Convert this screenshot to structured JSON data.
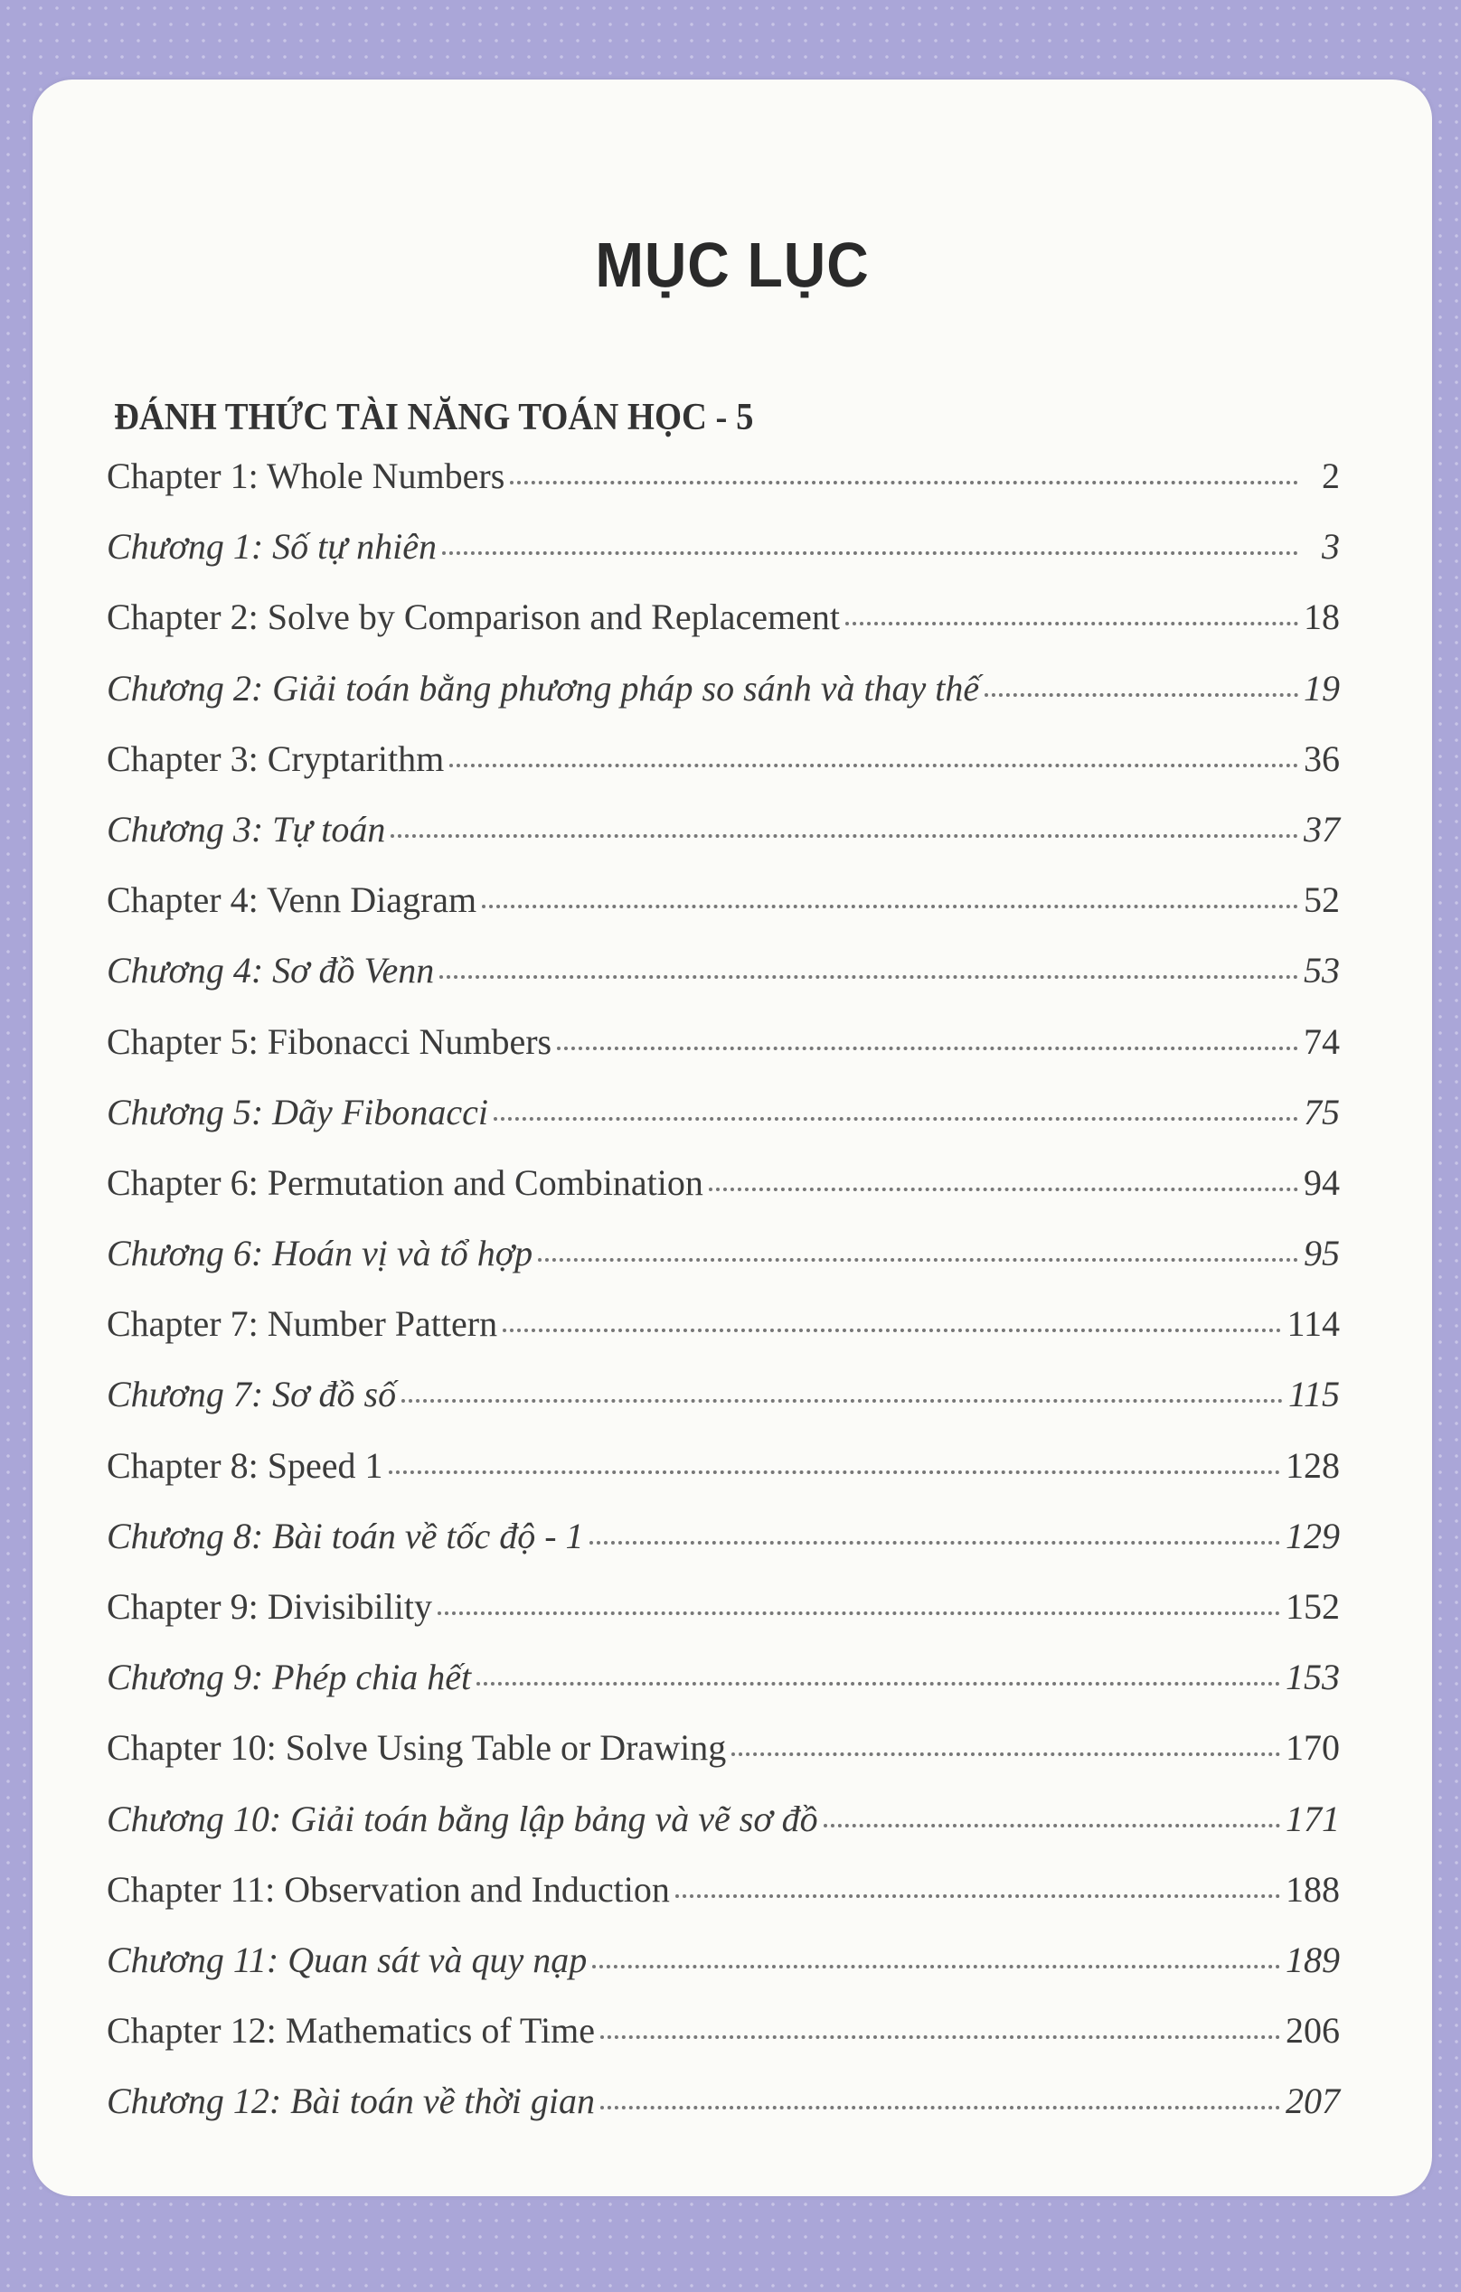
{
  "title": "MỤC LỤC",
  "subtitle": "ĐÁNH THỨC TÀI NĂNG TOÁN HỌC - 5",
  "entries": [
    {
      "label": "Chapter 1: Whole Numbers",
      "page": "2",
      "italic": false
    },
    {
      "label": "Chương 1: Số tự nhiên",
      "page": "3",
      "italic": true
    },
    {
      "label": "Chapter 2: Solve by Comparison and Replacement",
      "page": "18",
      "italic": false
    },
    {
      "label": "Chương 2: Giải toán bằng phương pháp so sánh và thay thế",
      "page": "19",
      "italic": true
    },
    {
      "label": "Chapter 3: Cryptarithm",
      "page": "36",
      "italic": false
    },
    {
      "label": "Chương 3: Tự toán",
      "page": "37",
      "italic": true
    },
    {
      "label": "Chapter 4: Venn Diagram",
      "page": "52",
      "italic": false
    },
    {
      "label": "Chương 4: Sơ đồ Venn",
      "page": "53",
      "italic": true
    },
    {
      "label": "Chapter 5: Fibonacci Numbers",
      "page": "74",
      "italic": false
    },
    {
      "label": "Chương 5: Dãy Fibonacci",
      "page": "75",
      "italic": true
    },
    {
      "label": "Chapter 6: Permutation and Combination",
      "page": "94",
      "italic": false
    },
    {
      "label": "Chương 6: Hoán vị và tổ hợp",
      "page": "95",
      "italic": true
    },
    {
      "label": "Chapter 7: Number Pattern",
      "page": "114",
      "italic": false
    },
    {
      "label": "Chương 7: Sơ đồ số",
      "page": "115",
      "italic": true
    },
    {
      "label": "Chapter 8: Speed 1",
      "page": "128",
      "italic": false
    },
    {
      "label": "Chương 8: Bài toán về tốc độ - 1",
      "page": "129",
      "italic": true
    },
    {
      "label": "Chapter 9: Divisibility",
      "page": "152",
      "italic": false
    },
    {
      "label": "Chương 9: Phép chia hết",
      "page": "153",
      "italic": true
    },
    {
      "label": "Chapter 10: Solve Using Table or Drawing",
      "page": "170",
      "italic": false
    },
    {
      "label": "Chương 10: Giải toán bằng lập bảng và vẽ sơ đồ",
      "page": "171",
      "italic": true
    },
    {
      "label": "Chapter 11: Observation and Induction",
      "page": "188",
      "italic": false
    },
    {
      "label": "Chương 11: Quan sát và quy nạp",
      "page": "189",
      "italic": true
    },
    {
      "label": "Chapter 12: Mathematics of Time",
      "page": "206",
      "italic": false
    },
    {
      "label": "Chương 12: Bài toán về thời gian",
      "page": "207",
      "italic": true
    }
  ]
}
